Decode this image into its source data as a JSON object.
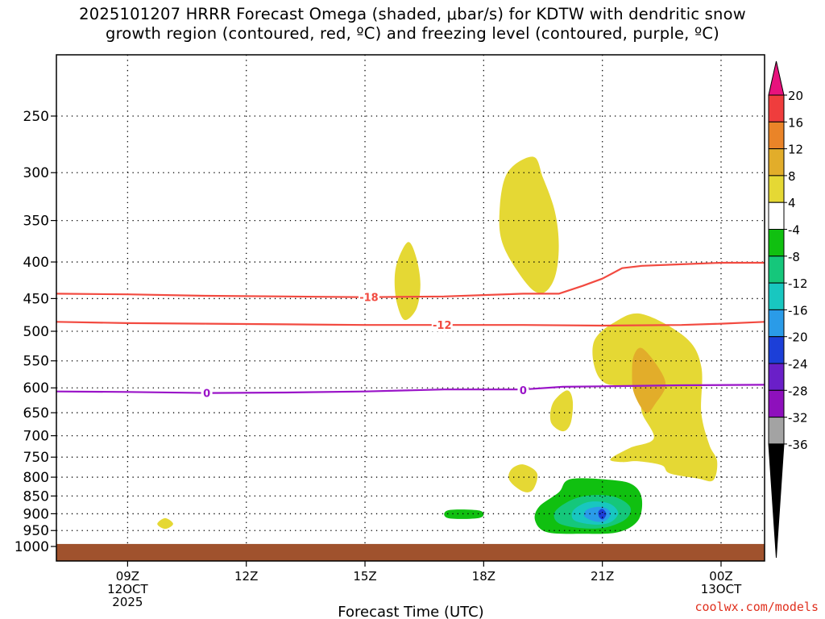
{
  "title": {
    "line1": "2025101207 HRRR Forecast Omega (shaded, μbar/s) for KDTW with dendritic snow",
    "line2": "growth region (contoured, red, ºC) and freezing level (contoured, purple, ºC)"
  },
  "credit": "coolwx.com/models",
  "colors": {
    "ground": "#a0522d",
    "dgz_contour": "#f24a40",
    "freezing_contour": "#9a14c8",
    "grid": "#000000"
  },
  "chart_data": {
    "type": "contour",
    "title": "2025101207 HRRR Forecast Omega (shaded, μbar/s) for KDTW with dendritic snow growth region (contoured, red, ºC) and freezing level (contoured, purple, ºC)",
    "xlabel": "Forecast Time (UTC)",
    "ylabel": "",
    "xlim": [
      7.2,
      25.1
    ],
    "ylim": [
      1030,
      200
    ],
    "x_ticks": [
      {
        "x": 9,
        "lines": [
          "09Z",
          "12OCT",
          "2025"
        ]
      },
      {
        "x": 12,
        "lines": [
          "12Z"
        ]
      },
      {
        "x": 15,
        "lines": [
          "15Z"
        ]
      },
      {
        "x": 18,
        "lines": [
          "18Z"
        ]
      },
      {
        "x": 21,
        "lines": [
          "21Z"
        ]
      },
      {
        "x": 24,
        "lines": [
          "00Z",
          "13OCT"
        ]
      }
    ],
    "y_ticks": [
      250,
      300,
      350,
      400,
      450,
      500,
      550,
      600,
      650,
      700,
      750,
      800,
      850,
      900,
      950,
      1000
    ],
    "ground_level_hPa": 992,
    "colorbar": {
      "levels": [
        20,
        16,
        12,
        8,
        4,
        -4,
        -8,
        -12,
        -16,
        -20,
        -24,
        -28,
        -32,
        -36
      ],
      "colors": [
        "#e8127d",
        "#ef3d3d",
        "#ea8428",
        "#e2ad2a",
        "#e5d834",
        "#ffffff",
        "#10c010",
        "#15c77b",
        "#18c7c0",
        "#2a9be8",
        "#1c3fd8",
        "#6a1fc8",
        "#8e10bc",
        "#a3a3a3",
        "#000000"
      ]
    },
    "contours": [
      {
        "name": "dgz -18",
        "label": "-18",
        "value": -18,
        "color": "#f24a40",
        "points": [
          [
            7.2,
            443
          ],
          [
            9,
            444
          ],
          [
            11,
            446
          ],
          [
            13,
            447
          ],
          [
            15,
            448
          ],
          [
            17,
            447
          ],
          [
            19,
            443
          ],
          [
            19.9,
            443
          ],
          [
            20.5,
            432
          ],
          [
            21,
            422
          ],
          [
            21.5,
            408
          ],
          [
            22,
            405
          ],
          [
            23,
            403
          ],
          [
            24,
            401
          ],
          [
            25.1,
            401
          ]
        ]
      },
      {
        "name": "dgz -12",
        "label": "-12",
        "value": -12,
        "color": "#f24a40",
        "points": [
          [
            7.2,
            485
          ],
          [
            9,
            487
          ],
          [
            11,
            488
          ],
          [
            13,
            489
          ],
          [
            15,
            490
          ],
          [
            17,
            490
          ],
          [
            19,
            490
          ],
          [
            21,
            491
          ],
          [
            23,
            490
          ],
          [
            24,
            488
          ],
          [
            25.1,
            485
          ]
        ]
      },
      {
        "name": "freezing 0",
        "label": "0",
        "value": 0,
        "color": "#9a14c8",
        "points": [
          [
            7.2,
            607
          ],
          [
            9,
            608
          ],
          [
            11,
            610
          ],
          [
            13,
            609
          ],
          [
            15,
            607
          ],
          [
            17,
            603
          ],
          [
            19,
            603
          ],
          [
            20,
            598
          ],
          [
            21,
            597
          ],
          [
            23,
            595
          ],
          [
            25.1,
            594
          ]
        ]
      }
    ],
    "contour_labels": [
      {
        "text": "-18",
        "x": 15.1,
        "p": 448
      },
      {
        "text": "-12",
        "x": 16.95,
        "p": 490
      },
      {
        "text": "0",
        "x": 11.0,
        "p": 610
      },
      {
        "text": "0",
        "x": 19.0,
        "p": 604
      }
    ],
    "shaded_regions": [
      {
        "name": "omega 4-8 area A",
        "level": "4 to 8",
        "color": "#e5d834",
        "points": [
          [
            19.25,
            285
          ],
          [
            19.5,
            305
          ],
          [
            19.8,
            340
          ],
          [
            19.9,
            380
          ],
          [
            19.8,
            420
          ],
          [
            19.5,
            442
          ],
          [
            19.1,
            430
          ],
          [
            18.5,
            380
          ],
          [
            18.4,
            340
          ],
          [
            18.6,
            300
          ]
        ]
      },
      {
        "name": "omega 4-8 area B",
        "level": "4 to 8",
        "color": "#e5d834",
        "points": [
          [
            16.1,
            375
          ],
          [
            16.3,
            395
          ],
          [
            16.4,
            430
          ],
          [
            16.3,
            465
          ],
          [
            16.0,
            482
          ],
          [
            15.8,
            455
          ],
          [
            15.75,
            420
          ],
          [
            15.85,
            395
          ]
        ]
      },
      {
        "name": "omega 4-8 area C",
        "level": "4 to 8",
        "color": "#e5d834",
        "points": [
          [
            22,
            473
          ],
          [
            23.1,
            510
          ],
          [
            23.5,
            560
          ],
          [
            23.5,
            650
          ],
          [
            23.7,
            720
          ],
          [
            23.9,
            760
          ],
          [
            23.8,
            808
          ],
          [
            23.4,
            803
          ],
          [
            22.7,
            790
          ],
          [
            22.5,
            770
          ],
          [
            21.9,
            760
          ],
          [
            21.5,
            762
          ],
          [
            21.2,
            755
          ],
          [
            21.7,
            728
          ],
          [
            22.3,
            706
          ],
          [
            22.0,
            650
          ],
          [
            21.9,
            600
          ],
          [
            21.1,
            592
          ],
          [
            20.8,
            560
          ],
          [
            20.8,
            515
          ],
          [
            21.3,
            486
          ]
        ]
      },
      {
        "name": "omega 4-8 area D",
        "level": "4 to 8",
        "color": "#e5d834",
        "points": [
          [
            20.1,
            605
          ],
          [
            20.25,
            625
          ],
          [
            20.2,
            672
          ],
          [
            20.0,
            690
          ],
          [
            19.7,
            670
          ],
          [
            19.75,
            630
          ]
        ]
      },
      {
        "name": "omega 4-8 area E",
        "level": "4 to 8",
        "color": "#e5d834",
        "points": [
          [
            19.0,
            768
          ],
          [
            19.35,
            790
          ],
          [
            19.25,
            832
          ],
          [
            19.0,
            838
          ],
          [
            18.65,
            808
          ],
          [
            18.7,
            780
          ]
        ]
      },
      {
        "name": "omega 4-8 area F",
        "level": "4 to 8",
        "color": "#e5d834",
        "points": [
          [
            9.95,
            913
          ],
          [
            10.15,
            930
          ],
          [
            9.95,
            945
          ],
          [
            9.75,
            930
          ]
        ]
      },
      {
        "name": "omega 8-12 area",
        "level": "8 to 12",
        "color": "#e2ad2a",
        "points": [
          [
            22.0,
            528
          ],
          [
            22.4,
            560
          ],
          [
            22.6,
            595
          ],
          [
            22.35,
            630
          ],
          [
            22.1,
            650
          ],
          [
            21.8,
            610
          ],
          [
            21.75,
            570
          ],
          [
            21.8,
            540
          ]
        ]
      },
      {
        "name": "omega -4 to -8 area A",
        "level": "-4 to -8",
        "color": "#10c010",
        "points": [
          [
            20.2,
            805
          ],
          [
            21.3,
            808
          ],
          [
            21.8,
            822
          ],
          [
            22.0,
            860
          ],
          [
            21.9,
            920
          ],
          [
            21.4,
            955
          ],
          [
            20.5,
            960
          ],
          [
            19.6,
            955
          ],
          [
            19.3,
            920
          ],
          [
            19.4,
            880
          ],
          [
            19.9,
            840
          ]
        ]
      },
      {
        "name": "omega -4 to -8 area B",
        "level": "-4 to -8",
        "color": "#10c010",
        "points": [
          [
            17.1,
            890
          ],
          [
            17.9,
            891
          ],
          [
            17.9,
            912
          ],
          [
            17.1,
            913
          ]
        ]
      },
      {
        "name": "omega -8 to -12 area",
        "level": "-8 to -12",
        "color": "#15c77b",
        "points": [
          [
            20.7,
            848
          ],
          [
            21.3,
            852
          ],
          [
            21.7,
            880
          ],
          [
            21.6,
            915
          ],
          [
            21.1,
            940
          ],
          [
            20.5,
            943
          ],
          [
            19.9,
            928
          ],
          [
            19.8,
            895
          ],
          [
            20.2,
            862
          ]
        ]
      },
      {
        "name": "omega -12 to -16 area",
        "level": "-12 to -16",
        "color": "#18c7c0",
        "points": [
          [
            20.8,
            865
          ],
          [
            21.2,
            872
          ],
          [
            21.4,
            898
          ],
          [
            21.2,
            925
          ],
          [
            20.8,
            932
          ],
          [
            20.3,
            920
          ],
          [
            20.25,
            893
          ],
          [
            20.5,
            872
          ]
        ]
      },
      {
        "name": "omega -16 to -20 area",
        "level": "-16 to -20",
        "color": "#2a9be8",
        "points": [
          [
            20.9,
            880
          ],
          [
            21.15,
            888
          ],
          [
            21.2,
            905
          ],
          [
            21.05,
            922
          ],
          [
            20.8,
            922
          ],
          [
            20.55,
            908
          ],
          [
            20.6,
            889
          ]
        ]
      },
      {
        "name": "omega -20 to -24 area",
        "level": "-20 to -24",
        "color": "#1c3fd8",
        "points": [
          [
            21.0,
            886
          ],
          [
            21.1,
            900
          ],
          [
            21.02,
            916
          ],
          [
            20.92,
            910
          ],
          [
            20.9,
            894
          ]
        ]
      }
    ]
  }
}
